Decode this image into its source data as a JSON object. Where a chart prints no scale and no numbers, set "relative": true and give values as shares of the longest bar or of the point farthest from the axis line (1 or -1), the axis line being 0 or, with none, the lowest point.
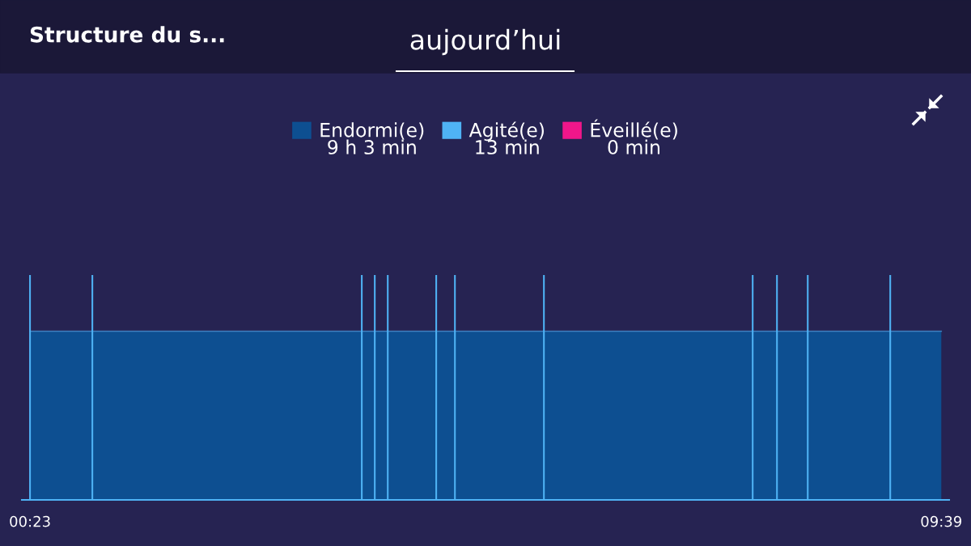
{
  "chart_data": {
    "type": "area",
    "title": "Structure du s...",
    "subtitle": "aujourd’hui",
    "relative": true,
    "xlim": [
      0.3,
      9.73
    ],
    "xticks": [
      {
        "value": 0.383,
        "label": "00:23"
      },
      {
        "value": 9.65,
        "label": "09:39"
      }
    ],
    "series": [
      {
        "name": "Endormi(e)",
        "color": "#0d4f91",
        "x": [
          0.383,
          9.65
        ],
        "values": [
          0.75,
          0.75
        ]
      },
      {
        "name": "Agité(e)",
        "color": "#4fb3f5",
        "type": "bar",
        "x": [
          0.383,
          1.017,
          3.757,
          3.889,
          4.021,
          4.514,
          4.704,
          5.609,
          7.732,
          7.979,
          8.292,
          9.131
        ],
        "values": [
          1,
          1,
          1,
          1,
          1,
          1,
          1,
          1,
          1,
          1,
          1,
          1
        ]
      },
      {
        "name": "Éveillé(e)",
        "color": "#f0168a",
        "type": "area"
      }
    ],
    "annotations": [
      "9 h 3 min",
      "13 min",
      "0 min"
    ],
    "legend": "top",
    "grid": false
  }
}
